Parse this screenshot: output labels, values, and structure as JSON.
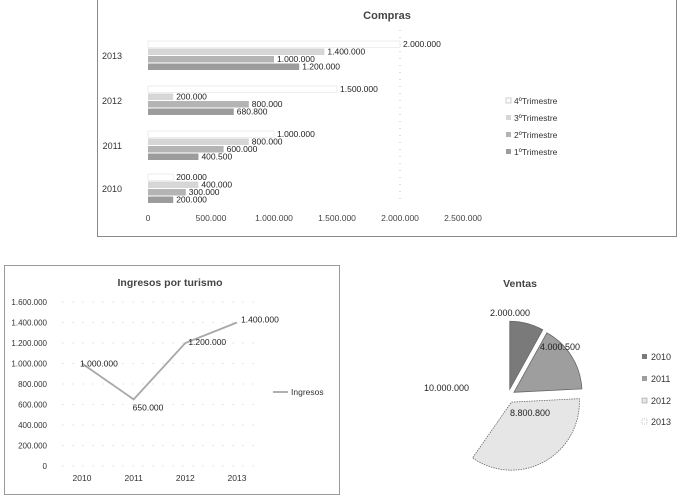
{
  "chart_data": [
    {
      "type": "bar",
      "orientation": "horizontal",
      "title": "Compras",
      "categories": [
        "2010",
        "2011",
        "2012",
        "2013"
      ],
      "series": [
        {
          "name": "1ºTrimestre",
          "values": [
            200000,
            400500,
            680800,
            1200000
          ],
          "color": "#9c9c9c"
        },
        {
          "name": "2ºTrimestre",
          "values": [
            300000,
            600000,
            800000,
            1000000
          ],
          "color": "#b4b4b4"
        },
        {
          "name": "3ºTrimestre",
          "values": [
            400000,
            800000,
            200000,
            1400000
          ],
          "color": "#d6d6d6"
        },
        {
          "name": "4ºTrimestre",
          "values": [
            200000,
            1000000,
            1500000,
            2000000
          ],
          "color": "#ffffff"
        }
      ],
      "data_labels": {
        "2010": [
          "200.000",
          "300.000",
          "400.000",
          "200.000"
        ],
        "2011": [
          "400.500",
          "600.000",
          "800.000",
          "1.000.000"
        ],
        "2012": [
          "680.800",
          "800.000",
          "200.000",
          "1.500.000"
        ],
        "2013": [
          "1.200.000",
          "1.000.000",
          "1.400.000",
          "2.000.000"
        ]
      },
      "xticks": [
        "0",
        "500.000",
        "1.000.000",
        "1.500.000",
        "2.000.000",
        "2.500.000"
      ],
      "xlim": [
        0,
        2500000
      ],
      "legend_position": "right"
    },
    {
      "type": "line",
      "title": "Ingresos por turismo",
      "x": [
        "2010",
        "2011",
        "2012",
        "2013"
      ],
      "series": [
        {
          "name": "Ingresos",
          "values": [
            1000000,
            650000,
            1200000,
            1400000
          ],
          "color": "#a8a8a8"
        }
      ],
      "data_labels": [
        "1.000.000",
        "650.000",
        "1.200.000",
        "1.400.000"
      ],
      "yticks": [
        "0",
        "200.000",
        "400.000",
        "600.000",
        "800.000",
        "1.000.000",
        "1.200.000",
        "1.400.000",
        "1.600.000"
      ],
      "ylim": [
        0,
        1600000
      ],
      "legend_position": "right"
    },
    {
      "type": "pie",
      "title": "Ventas",
      "labels": [
        "2010",
        "2011",
        "2012",
        "2013"
      ],
      "values": [
        2000000,
        4000500,
        8800800,
        10000000
      ],
      "data_labels": [
        "2.000.000",
        "4.000.500",
        "8.800.800",
        "10.000.000"
      ],
      "colors": [
        "#7a7a7a",
        "#9e9e9e",
        "#e6e6e6",
        "#ffffff"
      ],
      "legend_position": "right"
    }
  ]
}
